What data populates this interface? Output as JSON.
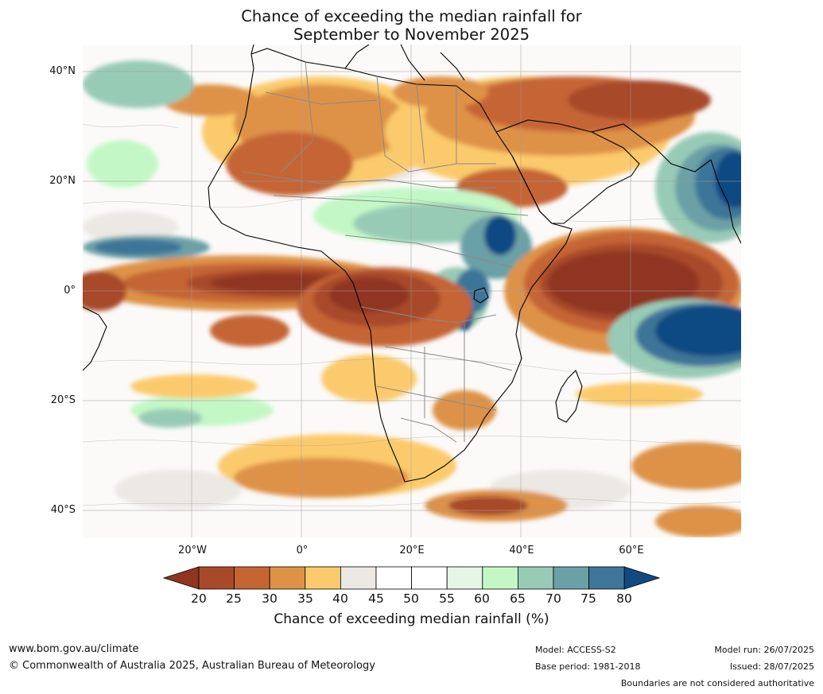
{
  "title": {
    "line1": "Chance of exceeding the median rainfall for",
    "line2": "September to November 2025"
  },
  "map": {
    "lat_labels": [
      "40°N",
      "20°N",
      "0°",
      "20°S",
      "40°S"
    ],
    "lon_labels": [
      "20°W",
      "0°",
      "20°E",
      "40°E",
      "60°E"
    ]
  },
  "colorbar": {
    "ticks": [
      "20",
      "25",
      "30",
      "35",
      "40",
      "45",
      "50",
      "55",
      "60",
      "65",
      "70",
      "75",
      "80"
    ],
    "colors": {
      "below_20": "#8f3520",
      "c20_25": "#a84a2a",
      "c25_30": "#c56534",
      "c30_35": "#de9246",
      "c35_40": "#fbca6c",
      "c40_45": "#ece9e4",
      "c45_50": "#ffffff",
      "c50_55": "#ffffff",
      "c55_60": "#e6f5e6",
      "c60_65": "#c3f8c6",
      "c65_70": "#98cbb6",
      "c70_75": "#6aa0a6",
      "c75_80": "#3e7598",
      "above_80": "#114a82"
    },
    "label": "Chance of exceeding median rainfall (%)"
  },
  "footer": {
    "website": "www.bom.gov.au/climate",
    "copyright": "© Commonwealth of Australia 2025, Australian Bureau of Meteorology",
    "model": "Model: ACCESS-S2",
    "base_period": "Base period: 1981-2018",
    "model_run": "Model run: 26/07/2025",
    "issued": "Issued: 28/07/2025",
    "boundaries_note": "Boundaries are not considered authoritative"
  }
}
